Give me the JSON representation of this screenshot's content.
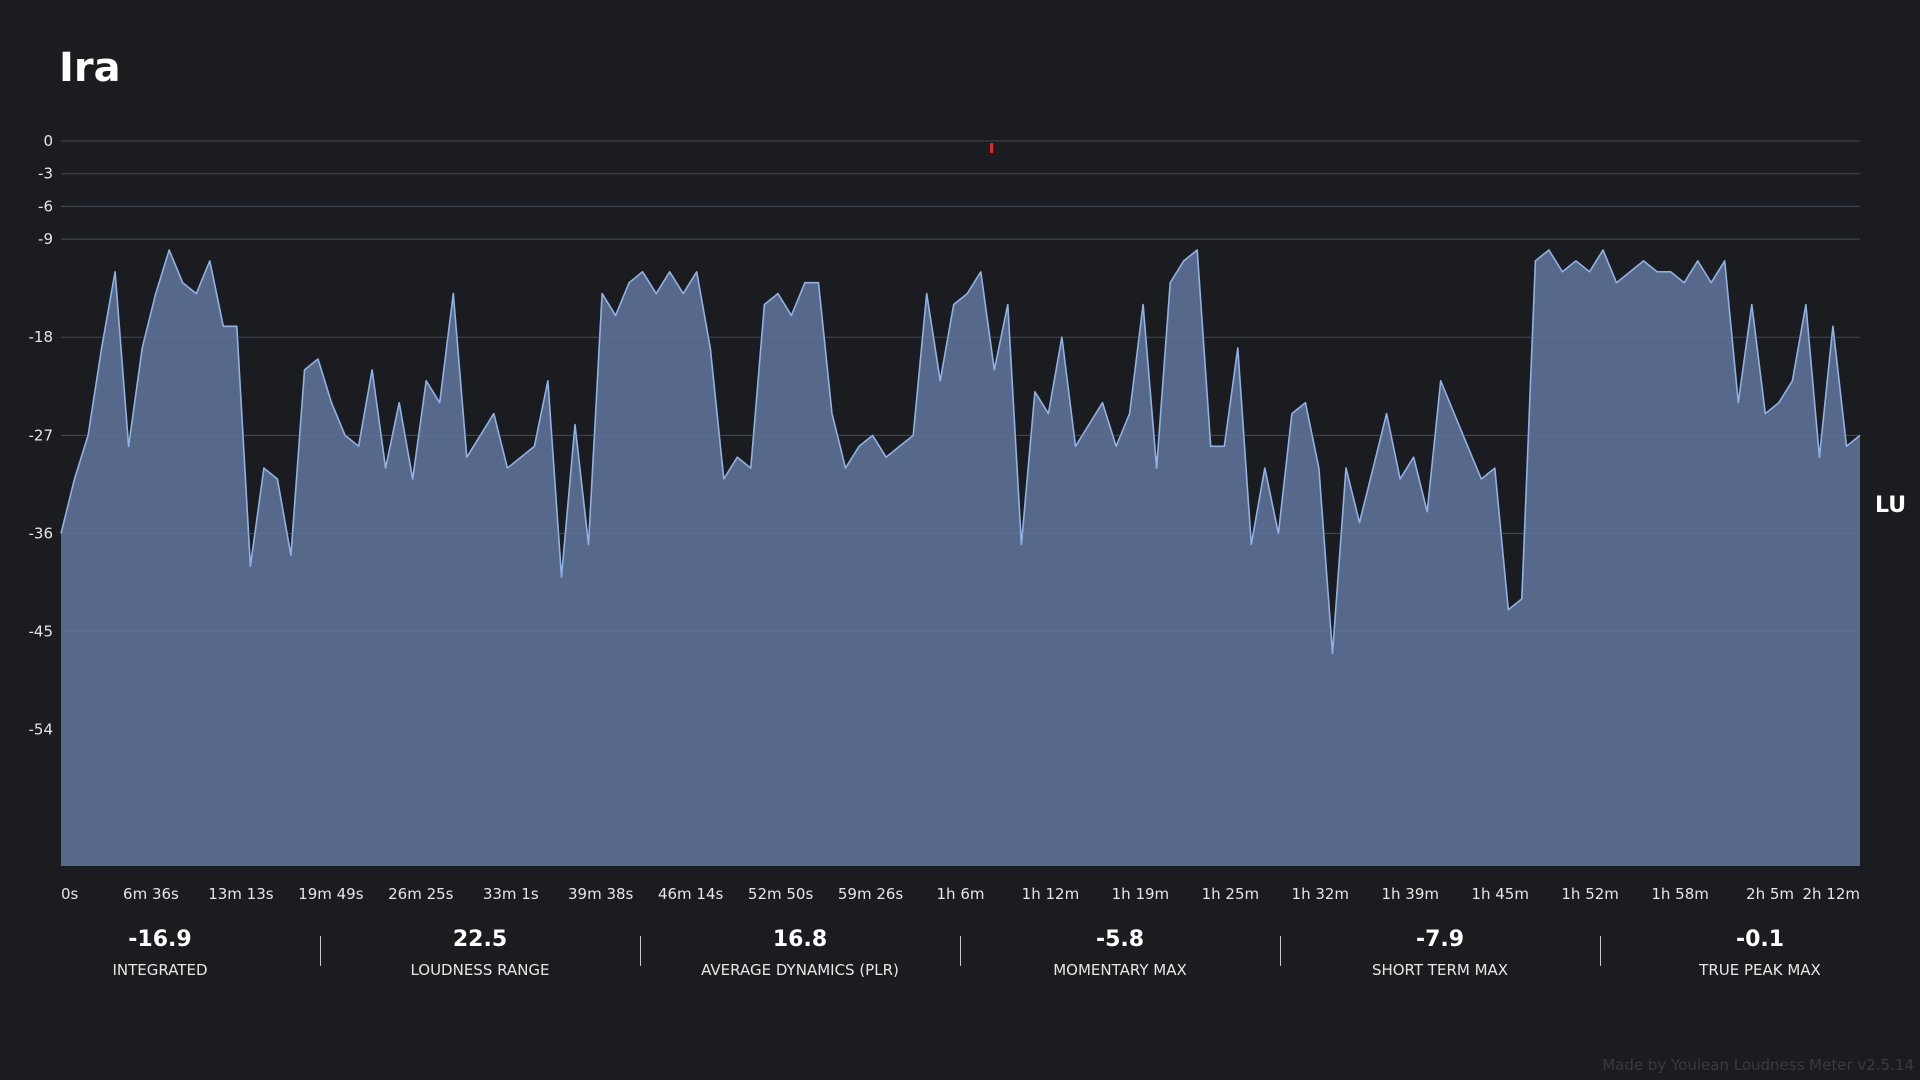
{
  "title": "Ira",
  "unit": "LU",
  "credit": "Made by Youlean Loudness Meter v2.5.14",
  "stats": [
    {
      "value": "-16.9",
      "label": "INTEGRATED"
    },
    {
      "value": "22.5",
      "label": "LOUDNESS RANGE"
    },
    {
      "value": "16.8",
      "label": "AVERAGE DYNAMICS (PLR)"
    },
    {
      "value": "-5.8",
      "label": "MOMENTARY MAX"
    },
    {
      "value": "-7.9",
      "label": "SHORT TERM MAX"
    },
    {
      "value": "-0.1",
      "label": "TRUE PEAK MAX"
    }
  ],
  "colors": {
    "background": "#1b1c20",
    "fill": "#56698a",
    "line": "#8fb2e6",
    "zero_tick": "#f2c240",
    "peak_marker": "#e8242c",
    "grid": "#2c2e34"
  },
  "chart_data": {
    "type": "area",
    "title": "Ira",
    "xlabel": "",
    "ylabel": "LU",
    "ylim": [
      -60,
      0
    ],
    "xlim_minutes": [
      0,
      133
    ],
    "grid": true,
    "y_ticks": [
      "0",
      "-3",
      "-6",
      "-9",
      "-18",
      "-27",
      "-36",
      "-45",
      "-54"
    ],
    "x_ticks": [
      "0s",
      "6m 36s",
      "13m 13s",
      "19m 49s",
      "26m 25s",
      "33m 1s",
      "39m 38s",
      "46m 14s",
      "52m 50s",
      "59m 26s",
      "1h 6m",
      "1h 12m",
      "1h 19m",
      "1h 25m",
      "1h 32m",
      "1h 39m",
      "1h 45m",
      "1h 52m",
      "1h 58m",
      "2h 5m",
      "2h 12m"
    ],
    "true_peak_marker_minutes": 68.8,
    "series": [
      {
        "x_minutes": [
          0,
          1,
          2,
          3,
          4,
          5,
          6,
          7,
          8,
          9,
          10,
          11,
          12,
          13,
          14,
          15,
          16,
          17,
          18,
          19,
          20,
          21,
          22,
          23,
          24,
          25,
          26,
          27,
          28,
          29,
          30,
          31,
          32,
          33,
          34,
          35,
          36,
          37,
          38,
          39,
          40,
          41,
          42,
          43,
          44,
          45,
          46,
          47,
          48,
          49,
          50,
          51,
          52,
          53,
          54,
          55,
          56,
          57,
          58,
          59,
          60,
          61,
          62,
          63,
          64,
          65,
          66,
          67,
          68,
          69,
          70,
          71,
          72,
          73,
          74,
          75,
          76,
          77,
          78,
          79,
          80,
          81,
          82,
          83,
          84,
          85,
          86,
          87,
          88,
          89,
          90,
          91,
          92,
          93,
          94,
          95,
          96,
          97,
          98,
          99,
          100,
          101,
          102,
          103,
          104,
          105,
          106,
          107,
          108,
          109,
          110,
          111,
          112,
          113,
          114,
          115,
          116,
          117,
          118,
          119,
          120,
          121,
          122,
          123,
          124,
          125,
          126,
          127,
          128,
          129,
          130,
          131,
          132,
          133
        ],
        "values": [
          -36,
          -31,
          -27,
          -19,
          -12,
          -28,
          -19,
          -14,
          -10,
          -13,
          -14,
          -11,
          -17,
          -17,
          -39,
          -30,
          -31,
          -38,
          -21,
          -20,
          -24,
          -27,
          -28,
          -21,
          -30,
          -24,
          -31,
          -22,
          -24,
          -14,
          -29,
          -27,
          -25,
          -30,
          -29,
          -28,
          -22,
          -40,
          -26,
          -37,
          -14,
          -16,
          -13,
          -12,
          -14,
          -12,
          -14,
          -12,
          -19,
          -31,
          -29,
          -30,
          -15,
          -14,
          -16,
          -13,
          -13,
          -25,
          -30,
          -28,
          -27,
          -29,
          -28,
          -27,
          -14,
          -22,
          -15,
          -14,
          -12,
          -21,
          -15,
          -37,
          -23,
          -25,
          -18,
          -28,
          -26,
          -24,
          -28,
          -25,
          -15,
          -30,
          -13,
          -11,
          -10,
          -28,
          -28,
          -19,
          -37,
          -30,
          -36,
          -25,
          -24,
          -30,
          -47,
          -30,
          -35,
          -30,
          -25,
          -31,
          -29,
          -34,
          -22,
          -25,
          -28,
          -31,
          -30,
          -43,
          -42,
          -11,
          -10,
          -12,
          -11,
          -12,
          -10,
          -13,
          -12,
          -11,
          -12,
          -12,
          -13,
          -11,
          -13,
          -11,
          -24,
          -15,
          -25,
          -24,
          -22,
          -15,
          -29,
          -17,
          -28,
          -27
        ]
      }
    ]
  }
}
